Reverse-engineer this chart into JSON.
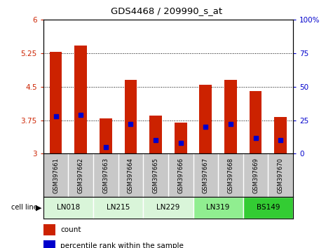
{
  "title": "GDS4468 / 209990_s_at",
  "samples": [
    "GSM397661",
    "GSM397662",
    "GSM397663",
    "GSM397664",
    "GSM397665",
    "GSM397666",
    "GSM397667",
    "GSM397668",
    "GSM397669",
    "GSM397670"
  ],
  "cell_lines": [
    "LN018",
    "LN215",
    "LN229",
    "LN319",
    "BS149"
  ],
  "cell_line_spans": [
    [
      0,
      1
    ],
    [
      2,
      3
    ],
    [
      4,
      5
    ],
    [
      6,
      7
    ],
    [
      8,
      9
    ]
  ],
  "cell_line_colors": [
    "#d9f5d9",
    "#d9f5d9",
    "#d9f5d9",
    "#90ee90",
    "#33cc33"
  ],
  "bar_values": [
    5.28,
    5.42,
    3.8,
    4.65,
    3.85,
    3.7,
    4.55,
    4.65,
    4.4,
    3.83
  ],
  "percentile_values": [
    28,
    29,
    5,
    22,
    10,
    8,
    20,
    22,
    12,
    10
  ],
  "bar_bottom": 3.0,
  "ylim_left": [
    3.0,
    6.0
  ],
  "ylim_right": [
    0,
    100
  ],
  "yticks_left": [
    3.0,
    3.75,
    4.5,
    5.25,
    6.0
  ],
  "yticks_right": [
    0,
    25,
    50,
    75,
    100
  ],
  "yticklabels_left": [
    "3",
    "3.75",
    "4.5",
    "5.25",
    "6"
  ],
  "yticklabels_right": [
    "0",
    "25",
    "50",
    "75",
    "100%"
  ],
  "bar_color": "#cc2200",
  "percentile_color": "#0000cc",
  "grid_yticks": [
    3.75,
    4.5,
    5.25
  ],
  "xlabel_color_left": "#cc2200",
  "xlabel_color_right": "#0000cc",
  "sample_bg": "#c8c8c8",
  "plot_bg": "#ffffff"
}
